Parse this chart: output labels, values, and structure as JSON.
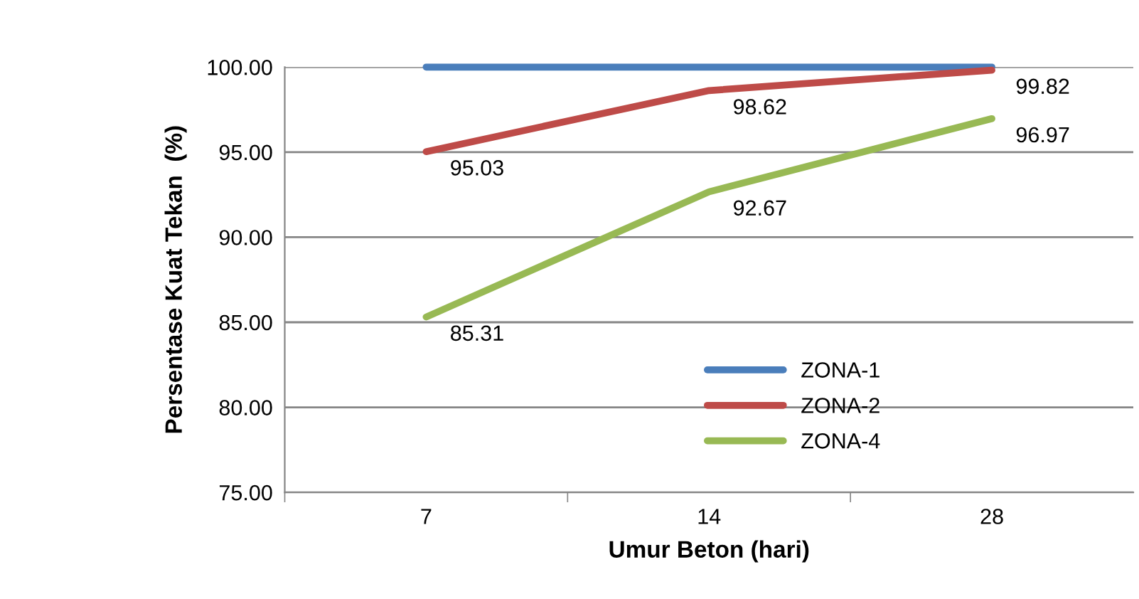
{
  "chart_data": {
    "type": "line",
    "xlabel": "Umur Beton (hari)",
    "ylabel": "Persentase Kuat Tekan  (%)",
    "categories": [
      "7",
      "14",
      "28"
    ],
    "series": [
      {
        "name": "ZONA-1",
        "color": "#4a7ebb",
        "values": [
          100,
          100,
          100
        ],
        "value_labels": [
          null,
          null,
          null
        ]
      },
      {
        "name": "ZONA-2",
        "color": "#be4b48",
        "values": [
          95.03,
          98.62,
          99.82
        ],
        "value_labels": [
          "95.03",
          "98.62",
          "99.82"
        ]
      },
      {
        "name": "ZONA-4",
        "color": "#98b954",
        "values": [
          85.31,
          92.67,
          96.97
        ],
        "value_labels": [
          "85.31",
          "92.67",
          "96.97"
        ]
      }
    ],
    "ylim": [
      75,
      100
    ],
    "yticks": [
      {
        "value": 75,
        "label": "75.00"
      },
      {
        "value": 80,
        "label": "80.00"
      },
      {
        "value": 85,
        "label": "85.00"
      },
      {
        "value": 90,
        "label": "90.00"
      },
      {
        "value": 95,
        "label": "95.00"
      },
      {
        "value": 100,
        "label": "100.00"
      }
    ],
    "grid": "y",
    "legend": "bottom",
    "marker": "none",
    "line_style": "solid"
  }
}
